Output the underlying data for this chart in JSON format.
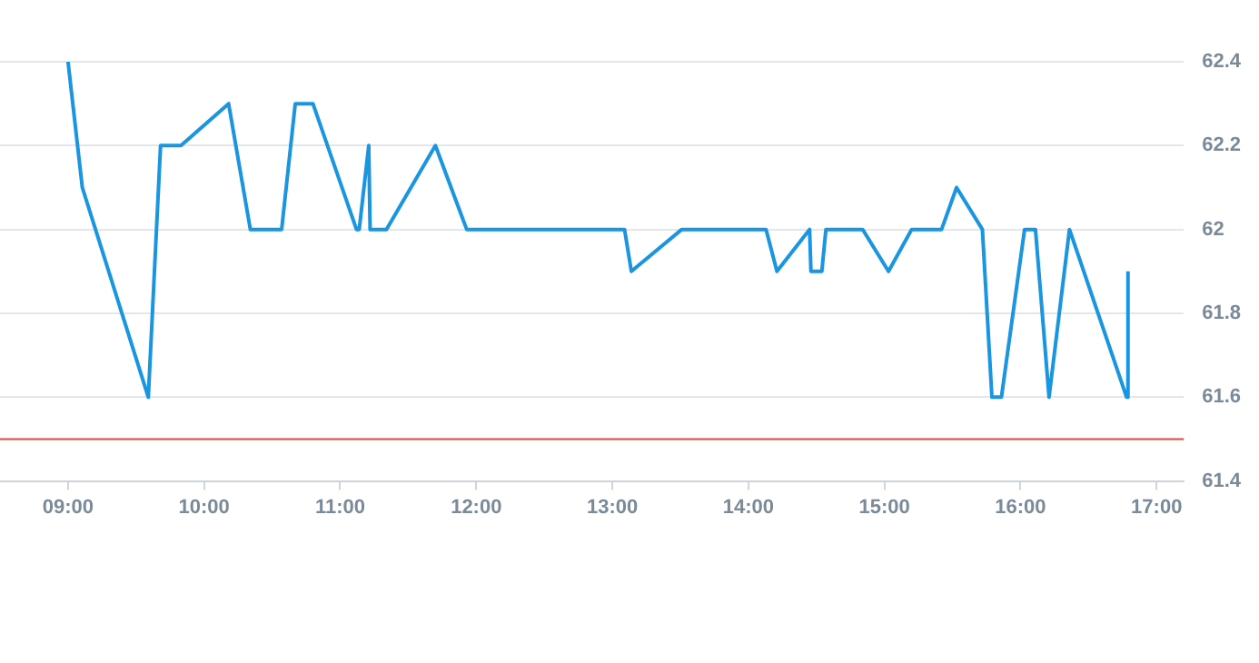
{
  "chart_data": {
    "type": "line",
    "x": [
      9.0,
      9.105,
      9.59,
      9.68,
      9.83,
      10.18,
      10.34,
      10.57,
      10.67,
      10.8,
      11.12,
      11.14,
      11.21,
      11.22,
      11.34,
      11.7,
      11.93,
      13.09,
      13.14,
      13.51,
      14.13,
      14.21,
      14.45,
      14.46,
      14.54,
      14.57,
      14.84,
      15.03,
      15.2,
      15.42,
      15.53,
      15.72,
      15.79,
      15.86,
      16.03,
      16.11,
      16.21,
      16.36,
      16.78,
      16.79
    ],
    "series": [
      {
        "color": "#1a95e0",
        "values": [
          62.4,
          62.1,
          61.6,
          62.2,
          62.2,
          62.3,
          62.0,
          62.0,
          62.3,
          62.3,
          62.0,
          62.0,
          62.2,
          62.0,
          62.0,
          62.2,
          62.0,
          62.0,
          61.9,
          62.0,
          62.0,
          61.9,
          62.0,
          61.9,
          61.9,
          62.0,
          62.0,
          61.9,
          62.0,
          62.0,
          62.1,
          62.0,
          61.6,
          61.6,
          62.0,
          62.0,
          61.6,
          62.0,
          61.6,
          61.9
        ]
      }
    ],
    "xlim": [
      8.5,
      17.2
    ],
    "xticks": [
      {
        "value": 9,
        "label": "09:00"
      },
      {
        "value": 10,
        "label": "10:00"
      },
      {
        "value": 11,
        "label": "11:00"
      },
      {
        "value": 12,
        "label": "12:00"
      },
      {
        "value": 13,
        "label": "13:00"
      },
      {
        "value": 14,
        "label": "14:00"
      },
      {
        "value": 15,
        "label": "15:00"
      },
      {
        "value": 16,
        "label": "16:00"
      },
      {
        "value": 17,
        "label": "17:00"
      }
    ],
    "ylim": [
      61.4,
      62.4
    ],
    "yticks": [
      61.4,
      61.6,
      61.8,
      62,
      62.2,
      62.4
    ],
    "ref_lines": [
      {
        "axis": "y",
        "value": 61.5,
        "color": "#e0463a"
      }
    ],
    "grid": "y",
    "legend": false,
    "marker": "none",
    "line_style": "solid"
  }
}
